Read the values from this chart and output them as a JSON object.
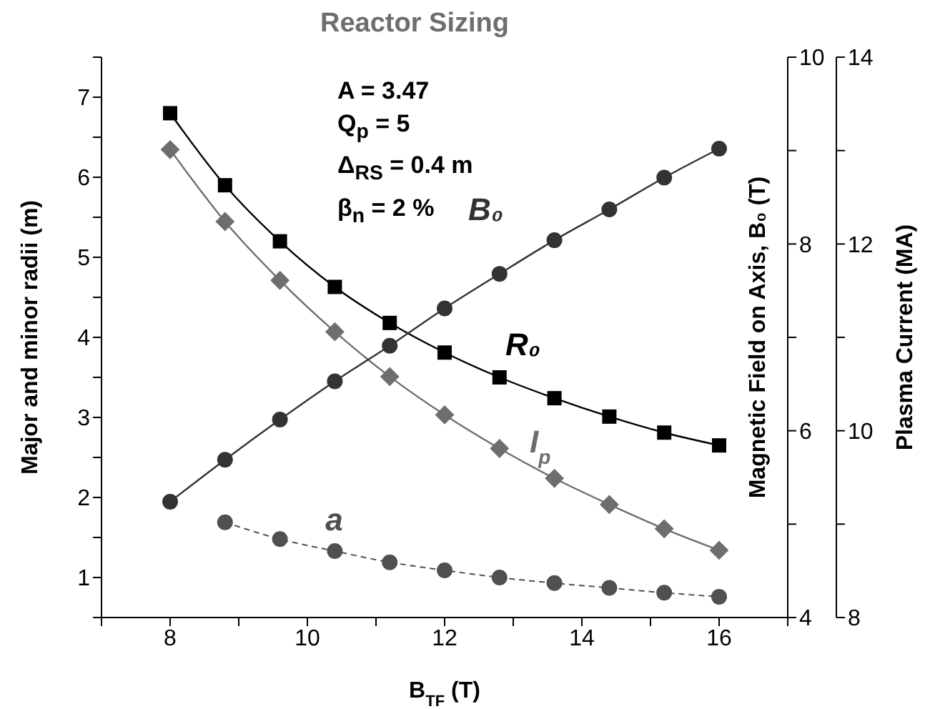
{
  "chart_data": {
    "type": "line",
    "title": "Reactor Sizing",
    "xlabel": "B$_{TF}$ (T)",
    "ylabel": "Major and minor radii (m)",
    "y2label": "Magnetic Field on Axis, B₀ (T)",
    "y3label": "Plasma Current (MA)",
    "annotations": [
      "A = 3.47",
      "Q$_{p}$ = 5",
      "Δ$_{RS}$ = 0.4 m",
      "β$_{n}$ = 2 %"
    ],
    "x": [
      8,
      8.8,
      9.6,
      10.4,
      11.2,
      12,
      12.8,
      13.6,
      14.4,
      15.2,
      16
    ],
    "xlim": [
      7,
      17
    ],
    "xticks": [
      {
        "value": 7,
        "label": null
      },
      8,
      {
        "value": 9,
        "label": null
      },
      10,
      {
        "value": 11,
        "label": null
      },
      12,
      {
        "value": 13,
        "label": null
      },
      14,
      {
        "value": 15,
        "label": null
      },
      16,
      {
        "value": 17,
        "label": null
      }
    ],
    "ylim": [
      0.5,
      7.5
    ],
    "yticks": [
      {
        "value": 0.5,
        "label": null
      },
      1,
      {
        "value": 1.5,
        "label": null
      },
      2,
      {
        "value": 2.5,
        "label": null
      },
      3,
      {
        "value": 3.5,
        "label": null
      },
      4,
      {
        "value": 4.5,
        "label": null
      },
      5,
      {
        "value": 5.5,
        "label": null
      },
      6,
      {
        "value": 6.5,
        "label": null
      },
      7,
      {
        "value": 7.5,
        "label": null
      }
    ],
    "y2lim": [
      4,
      10
    ],
    "y2ticks": [
      4,
      {
        "value": 5,
        "label": null
      },
      6,
      {
        "value": 7,
        "label": null
      },
      8,
      {
        "value": 9,
        "label": null
      },
      10
    ],
    "y3lim": [
      8,
      14
    ],
    "y3ticks": [
      8,
      {
        "value": 9,
        "label": null
      },
      10,
      {
        "value": 11,
        "label": null
      },
      12,
      {
        "value": 13,
        "label": null
      },
      14
    ],
    "grid": false,
    "legend": false,
    "series": [
      {
        "name": "R₀",
        "color": "#000000",
        "marker": "square",
        "line_style": "solid",
        "values": [
          6.8,
          5.9,
          5.2,
          4.63,
          4.18,
          3.81,
          3.5,
          3.24,
          3.01,
          2.81,
          2.65
        ]
      },
      {
        "name": "I$_{p}$",
        "color": "#6e6e6e",
        "marker": "diamond",
        "line_style": "solid",
        "axis": "y3",
        "values": [
          13.01,
          12.24,
          11.61,
          11.06,
          10.58,
          10.17,
          9.81,
          9.49,
          9.21,
          8.95,
          8.72
        ]
      },
      {
        "name": "a",
        "color": "#505050",
        "marker": "circle",
        "line_style": "dashed",
        "values": [
          null,
          1.69,
          1.48,
          1.33,
          1.19,
          1.09,
          1.0,
          0.93,
          0.87,
          0.81,
          0.76
        ]
      },
      {
        "name": "B₀",
        "color": "#333333",
        "marker": "circle",
        "line_style": "solid",
        "axis": "y2",
        "values": [
          5.24,
          5.69,
          6.12,
          6.53,
          6.91,
          7.31,
          7.68,
          8.04,
          8.37,
          8.71,
          9.02
        ]
      }
    ]
  }
}
